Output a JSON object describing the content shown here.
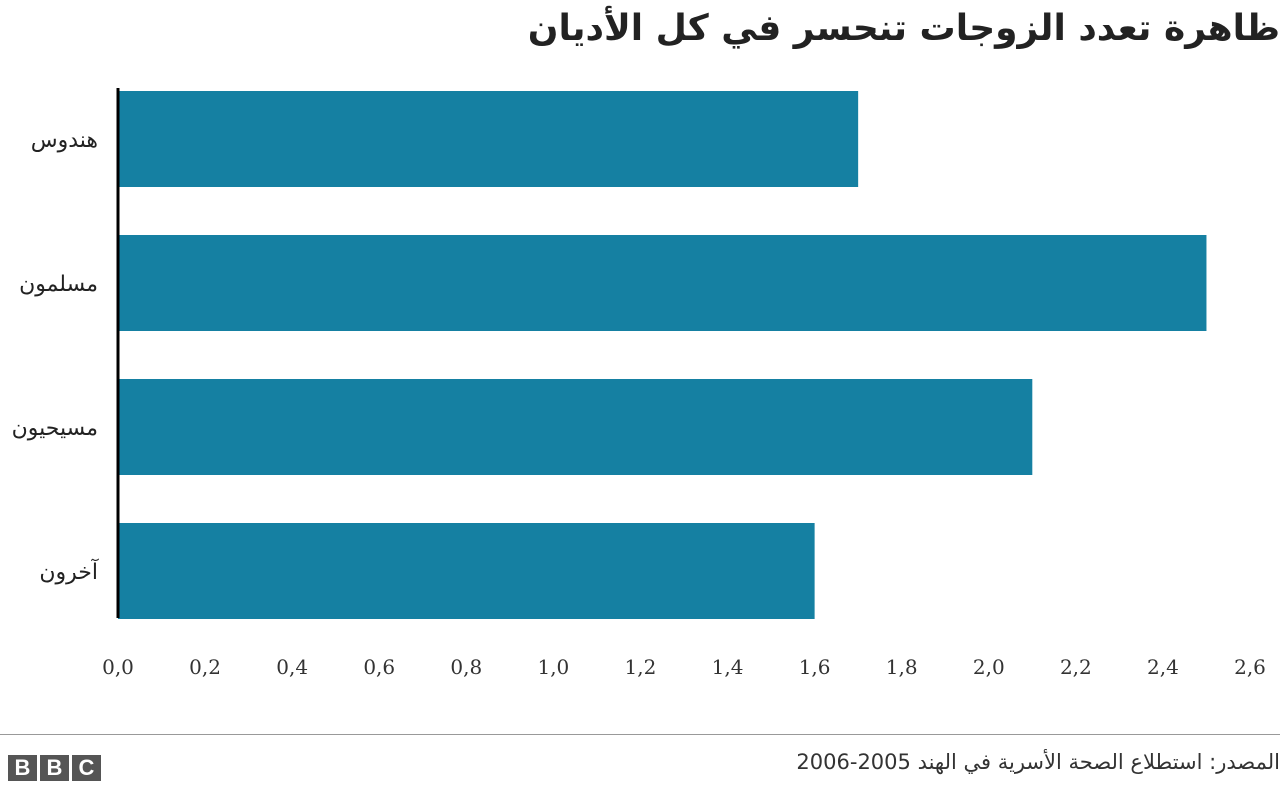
{
  "chart_data": {
    "type": "bar",
    "orientation": "horizontal",
    "title": "ظاهرة تعدد الزوجات تنحسر في كل الأديان",
    "categories": [
      "هندوس",
      "مسلمون",
      "مسيحيون",
      "آخرون"
    ],
    "values": [
      1.7,
      2.5,
      2.1,
      1.6
    ],
    "xlim": [
      0,
      2.6
    ],
    "xticks": [
      "0,0",
      "0,2",
      "0,4",
      "0,6",
      "0,8",
      "1,0",
      "1,2",
      "1,4",
      "1,6",
      "1,8",
      "2,0",
      "2,2",
      "2,4",
      "2,6"
    ],
    "xlabel": "",
    "ylabel": "",
    "grid": false,
    "bar_color": "#1580a2"
  },
  "footer": {
    "source": "المصدر: استطلاع الصحة الأسرية في الهند 2005-2006",
    "logo_letters": [
      "B",
      "B",
      "C"
    ]
  }
}
